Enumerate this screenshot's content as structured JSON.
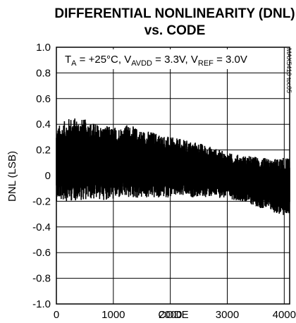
{
  "chart_data": {
    "type": "line",
    "title_line1": "DIFFERENTIAL NONLINEARITY (DNL)",
    "title_line2": "vs. CODE",
    "xlabel": "CODE",
    "ylabel": "DNL (LSB)",
    "xlim": [
      0,
      4095
    ],
    "ylim": [
      -1.0,
      1.0
    ],
    "x_ticks": [
      0,
      1000,
      2000,
      3000,
      4000
    ],
    "y_ticks": [
      1.0,
      0.8,
      0.6,
      0.4,
      0.2,
      0,
      -0.2,
      -0.4,
      -0.6,
      -0.8,
      -1.0
    ],
    "y_tick_labels": [
      "1.0",
      "0.8",
      "0.6",
      "0.4",
      "0.2",
      "0",
      "-0.2",
      "-0.4",
      "-0.6",
      "-0.8",
      "-1.0"
    ],
    "x_tick_labels": [
      "0",
      "1000",
      "2000",
      "3000",
      "4000"
    ],
    "grid": true,
    "annotation": {
      "t": "T",
      "t_sub": "A",
      "t_rest": " = +25°C, V",
      "v1_sub": "AVDD",
      "v1_rest": " = 3.3V, V",
      "v2_sub": "REF",
      "v2_rest": " = 3.0V"
    },
    "figure_id": "MAX5410 toc05",
    "series": [
      {
        "x": [
          0,
          250,
          500,
          750,
          1000,
          1250,
          1500,
          1750,
          2000,
          2250,
          2500,
          2750,
          3000,
          3250,
          3500,
          3750,
          4000,
          4095
        ],
        "y_max": [
          0.38,
          0.46,
          0.44,
          0.4,
          0.38,
          0.4,
          0.36,
          0.34,
          0.3,
          0.28,
          0.26,
          0.22,
          0.18,
          0.16,
          0.15,
          0.13,
          0.14,
          0.14
        ],
        "y_min": [
          -0.2,
          -0.2,
          -0.19,
          -0.19,
          -0.19,
          -0.18,
          -0.18,
          -0.18,
          -0.17,
          -0.17,
          -0.17,
          -0.17,
          -0.18,
          -0.2,
          -0.24,
          -0.28,
          -0.32,
          -0.3
        ]
      }
    ]
  }
}
